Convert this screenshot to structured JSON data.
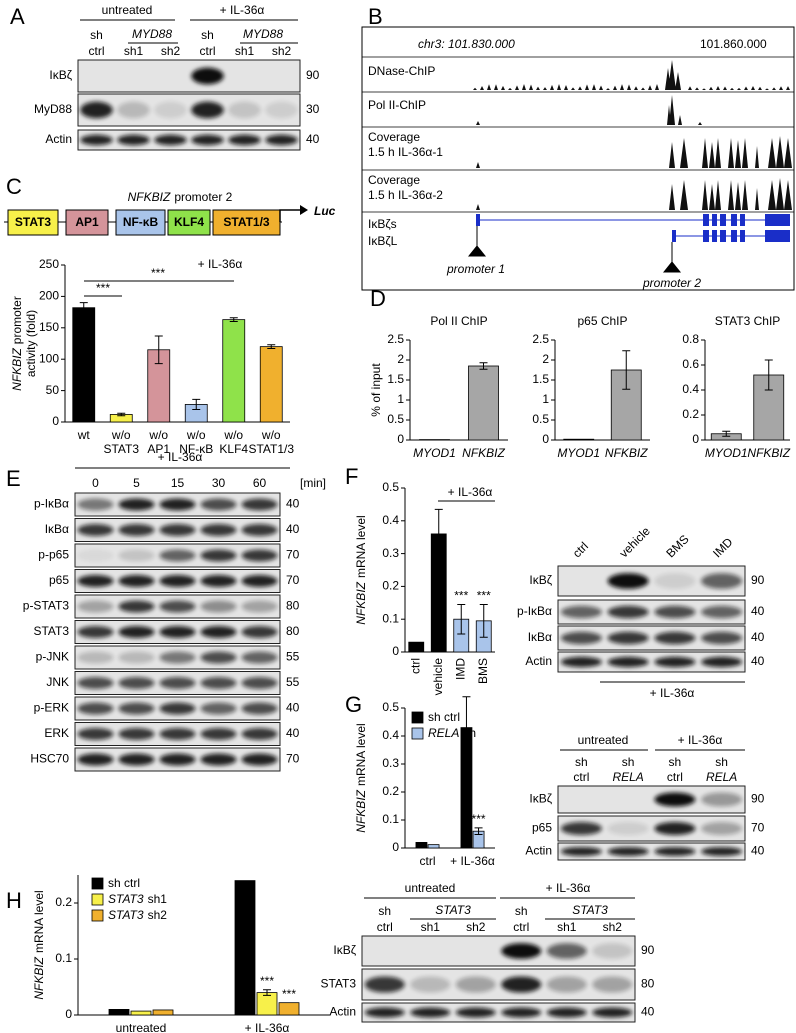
{
  "A": {
    "label": "A",
    "headers": [
      "untreated",
      "+ IL-36α",
      "sh",
      "ctrl",
      "MYD88",
      "sh1",
      "sh2",
      "sh",
      "ctrl",
      "MYD88",
      "sh1",
      "sh2"
    ],
    "rows": [
      {
        "protein": "IκBζ",
        "kda": 90
      },
      {
        "protein": "MyD88",
        "kda": 30
      },
      {
        "protein": "Actin",
        "kda": 40
      }
    ]
  },
  "B": {
    "label": "B",
    "coord_left": "chr3: 101.830.000",
    "coord_right": "101.860.000",
    "tracks": [
      [
        "DNase-ChIP"
      ],
      [
        "Pol II-ChIP"
      ],
      [
        "Coverage",
        "1.5 h IL-36α-1"
      ],
      [
        "Coverage",
        "1.5 h IL-36α-2"
      ]
    ],
    "transcripts": [
      "IκBζs",
      "IκBζL"
    ],
    "promoters": [
      "promoter 1",
      "promoter 2"
    ]
  },
  "C": {
    "label": "C",
    "promoter_gene": "NFKBIZ",
    "promoter_name": "promoter 2",
    "elements": [
      "STAT3",
      "AP1",
      "NF-κB",
      "KLF4",
      "STAT1/3"
    ],
    "element_colors": [
      "#f7f04a",
      "#d4949a",
      "#a9c4ea",
      "#8fe24a",
      "#f0b02e"
    ],
    "reporter": "Luc",
    "chart": {
      "type": "bar",
      "ylabel_gene": "NFKBIZ",
      "ylabel": [
        "promoter",
        "activity (fold)"
      ],
      "group_label": "+ IL-36α",
      "annotations": [
        "***",
        "***"
      ],
      "categories": [
        [
          "wt"
        ],
        [
          "w/o",
          "STAT3"
        ],
        [
          "w/o",
          "AP1"
        ],
        [
          "w/o",
          "NF-κB"
        ],
        [
          "w/o",
          "KLF4"
        ],
        [
          "w/o",
          "STAT1/3"
        ]
      ],
      "values": [
        182,
        12,
        115,
        28,
        163,
        120
      ],
      "errors": [
        8,
        2,
        22,
        8,
        3,
        3
      ],
      "colors": [
        "#000000",
        "#f7f04a",
        "#d4949a",
        "#a9c4ea",
        "#8fe24a",
        "#f0b02e"
      ],
      "ylim": [
        0,
        250
      ],
      "yticks": [
        0,
        50,
        100,
        150,
        200,
        250
      ]
    }
  },
  "D": {
    "label": "D",
    "ylabel": "% of input",
    "charts": [
      {
        "type": "bar",
        "title": "Pol II ChIP",
        "categories": [
          "MYOD1",
          "NFKBIZ"
        ],
        "values": [
          0.01,
          1.85
        ],
        "errors": [
          null,
          0.08
        ],
        "color": "#a6a6a6",
        "ylim": [
          0,
          2.5
        ],
        "yticks": [
          0,
          0.5,
          1,
          1.5,
          2,
          2.5
        ]
      },
      {
        "type": "bar",
        "title": "p65 ChIP",
        "categories": [
          "MYOD1",
          "NFKBIZ"
        ],
        "values": [
          0.02,
          1.75
        ],
        "errors": [
          null,
          0.48
        ],
        "color": "#a6a6a6",
        "ylim": [
          0,
          2.5
        ],
        "yticks": [
          0,
          0.5,
          1,
          1.5,
          2,
          2.5
        ]
      },
      {
        "type": "bar",
        "title": "STAT3 ChIP",
        "categories": [
          "MYOD1",
          "NFKBIZ"
        ],
        "values": [
          0.05,
          0.52
        ],
        "errors": [
          0.02,
          0.12
        ],
        "color": "#a6a6a6",
        "ylim": [
          0,
          0.8
        ],
        "yticks": [
          0,
          0.2,
          0.4,
          0.6,
          0.8
        ]
      }
    ]
  },
  "E": {
    "label": "E",
    "treatment": "+ IL-36α",
    "times": [
      0,
      5,
      15,
      30,
      60
    ],
    "unit": "[min]",
    "rows": [
      {
        "protein": "p-IκBα",
        "kda": 40
      },
      {
        "protein": "IκBα",
        "kda": 40
      },
      {
        "protein": "p-p65",
        "kda": 70
      },
      {
        "protein": "p65",
        "kda": 70
      },
      {
        "protein": "p-STAT3",
        "kda": 80
      },
      {
        "protein": "STAT3",
        "kda": 80
      },
      {
        "protein": "p-JNK",
        "kda": 55
      },
      {
        "protein": "JNK",
        "kda": 55
      },
      {
        "protein": "p-ERK",
        "kda": 40
      },
      {
        "protein": "ERK",
        "kda": 40
      },
      {
        "protein": "HSC70",
        "kda": 70
      }
    ]
  },
  "F": {
    "label": "F",
    "chart": {
      "type": "bar",
      "ylabel_gene": "NFKBIZ",
      "ylabel": [
        "mRNA level"
      ],
      "group_label": "+ IL-36α",
      "annotations": [
        "***",
        "***"
      ],
      "categories": [
        "ctrl",
        "vehicle",
        "IMD",
        "BMS"
      ],
      "values": [
        0.03,
        0.36,
        0.1,
        0.095
      ],
      "errors": [
        null,
        0.075,
        0.045,
        0.05
      ],
      "colors": [
        "#000000",
        "#000000",
        "#a9c4ea",
        "#a9c4ea"
      ],
      "ylim": [
        0,
        0.5
      ],
      "yticks": [
        0,
        0.1,
        0.2,
        0.3,
        0.4,
        0.5
      ]
    },
    "blot": {
      "headers": [
        "ctrl",
        "vehicle",
        "BMS",
        "IMD"
      ],
      "treatment": "+ IL-36α",
      "rows": [
        {
          "protein": "IκBζ",
          "kda": 90
        },
        {
          "protein": "p-IκBα",
          "kda": 40
        },
        {
          "protein": "IκBα",
          "kda": 40
        },
        {
          "protein": "Actin",
          "kda": 40
        }
      ]
    }
  },
  "G": {
    "label": "G",
    "chart": {
      "type": "bar",
      "ylabel_gene": "NFKBIZ",
      "ylabel": [
        "mRNA level"
      ],
      "annotations": [
        "***"
      ],
      "categories": [
        "ctrl",
        "+ IL-36α"
      ],
      "ylim": [
        0,
        0.5
      ],
      "yticks": [
        0,
        0.1,
        0.2,
        0.3,
        0.4,
        0.5
      ],
      "series": [
        {
          "name": "sh ctrl",
          "color": "#000000",
          "values": [
            0.02,
            0.43
          ],
          "errors": [
            null,
            0.11
          ]
        },
        {
          "name_gene": "RELA",
          "name": "sh",
          "color": "#a9c4ea",
          "values": [
            0.012,
            0.06
          ],
          "errors": [
            null,
            0.012
          ]
        }
      ]
    },
    "blot": {
      "headers": [
        "untreated",
        "+ IL-36α",
        "sh",
        "ctrl",
        "sh",
        "RELA",
        "sh",
        "ctrl",
        "sh",
        "RELA"
      ],
      "rows": [
        {
          "protein": "IκBζ",
          "kda": 90
        },
        {
          "protein": "p65",
          "kda": 70
        },
        {
          "protein": "Actin",
          "kda": 40
        }
      ]
    }
  },
  "H": {
    "label": "H",
    "chart": {
      "type": "bar",
      "ylabel_gene": "NFKBIZ",
      "ylabel": [
        "mRNA level"
      ],
      "annotations": [
        "***",
        "***"
      ],
      "categories": [
        "untreated",
        "+ IL-36α"
      ],
      "ylim": [
        0,
        0.25
      ],
      "yticks": [
        0,
        0.1,
        0.2
      ],
      "series": [
        {
          "name": "sh ctrl",
          "color": "#000000",
          "values": [
            0.01,
            0.24
          ],
          "errors": [
            null,
            null
          ]
        },
        {
          "name_gene": "STAT3",
          "name": "sh1",
          "color": "#f7f04a",
          "values": [
            0.007,
            0.04
          ],
          "errors": [
            null,
            0.005
          ]
        },
        {
          "name_gene": "STAT3",
          "name": "sh2",
          "color": "#f0b02e",
          "values": [
            0.009,
            0.022
          ],
          "errors": [
            null,
            null
          ]
        }
      ]
    },
    "blot": {
      "headers": [
        "untreated",
        "+ IL-36α",
        "sh",
        "ctrl",
        "STAT3",
        "sh1",
        "sh2",
        "sh",
        "ctrl",
        "STAT3",
        "sh1",
        "sh2"
      ],
      "rows": [
        {
          "protein": "IκBζ",
          "kda": 90
        },
        {
          "protein": "STAT3",
          "kda": 80
        },
        {
          "protein": "Actin",
          "kda": 40
        }
      ]
    }
  }
}
